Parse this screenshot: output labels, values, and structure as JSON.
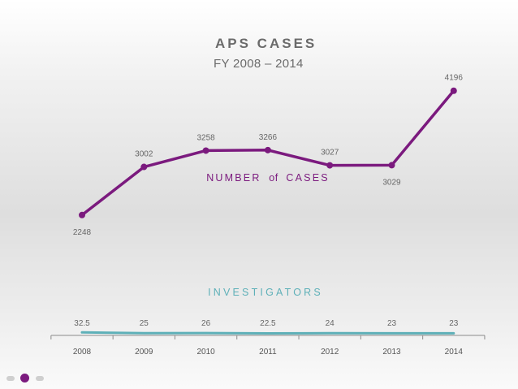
{
  "chart_data": {
    "type": "line",
    "title": "APS CASES",
    "subtitle": "FY 2008 – 2014",
    "categories": [
      "2008",
      "2009",
      "2010",
      "2011",
      "2012",
      "2013",
      "2014"
    ],
    "series": [
      {
        "name": "NUMBER of CASES",
        "label_main": "NUMBER",
        "label_of": "of",
        "label_tail": "CASES",
        "color": "#7b1a7e",
        "values": [
          2248,
          3002,
          3258,
          3266,
          3027,
          3029,
          4196
        ],
        "value_labels": [
          "2248",
          "3002",
          "3258",
          "3266",
          "3027",
          "3029",
          "4196"
        ]
      },
      {
        "name": "INVESTIGATORS",
        "color": "#5eb0b8",
        "values": [
          32.5,
          25,
          26,
          22.5,
          24,
          23,
          23
        ],
        "value_labels": [
          "32.5",
          "25",
          "26",
          "22.5",
          "24",
          "23",
          "23"
        ]
      }
    ],
    "ylim_cases": [
      1800,
      4600
    ],
    "ylim_investigators": [
      0,
      1000
    ],
    "xlabel": "",
    "ylabel": "",
    "grid": false
  },
  "slide_nav": {
    "active_index": 1,
    "count": 3,
    "active_color": "#7b1a7e",
    "inactive_color": "#cfcfcf"
  }
}
